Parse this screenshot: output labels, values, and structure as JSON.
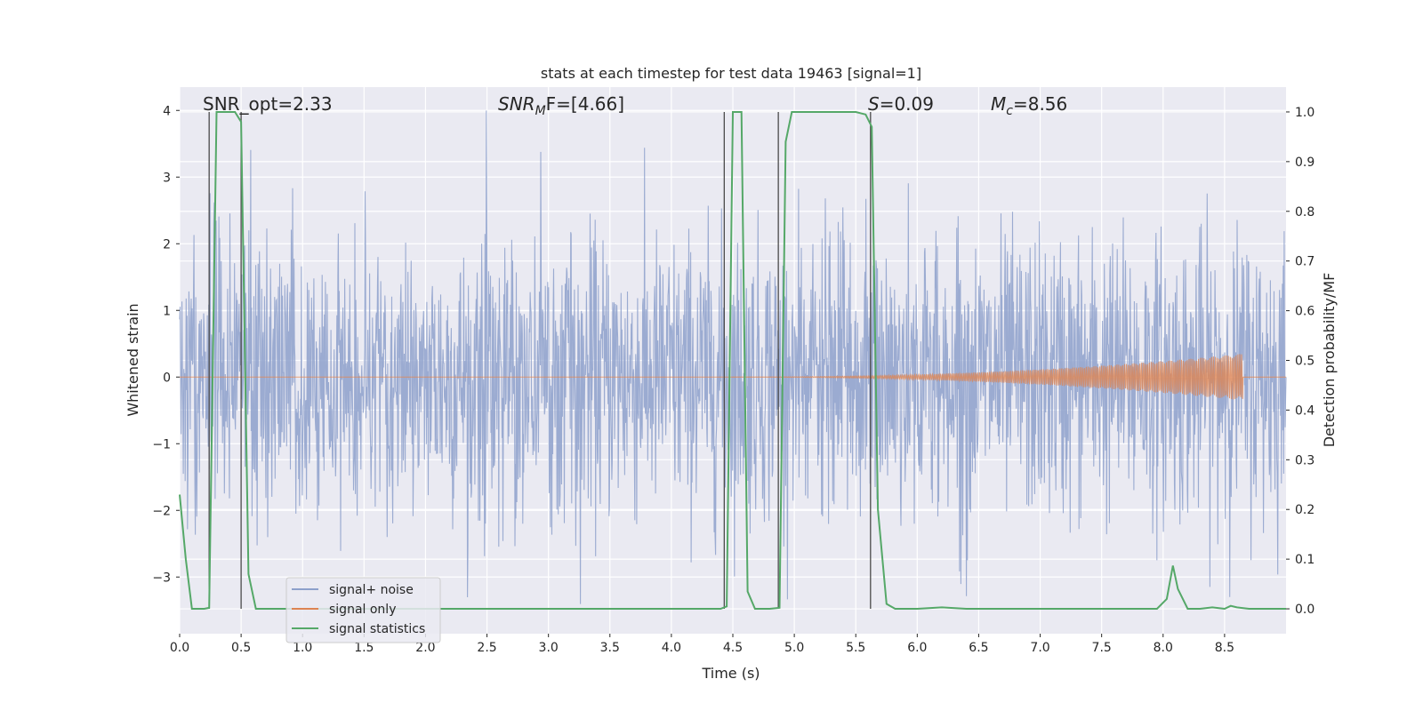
{
  "chart_data": {
    "type": "line",
    "title": "stats at each timestep for test data 19463 [signal=1]",
    "xlabel": "Time (s)",
    "ylabel_left": "Whitened strain",
    "ylabel_right": "Detection probability/MF",
    "xlim": [
      0.0,
      9.0
    ],
    "ylim_left": [
      -3.85,
      4.35
    ],
    "ylim_right": [
      -0.05,
      1.05
    ],
    "xticks": [
      "0.0",
      "0.5",
      "1.0",
      "1.5",
      "2.0",
      "2.5",
      "3.0",
      "3.5",
      "4.0",
      "4.5",
      "5.0",
      "5.5",
      "6.0",
      "6.5",
      "7.0",
      "7.5",
      "8.0",
      "8.5"
    ],
    "xtick_values": [
      0.0,
      0.5,
      1.0,
      1.5,
      2.0,
      2.5,
      3.0,
      3.5,
      4.0,
      4.5,
      5.0,
      5.5,
      6.0,
      6.5,
      7.0,
      7.5,
      8.0,
      8.5
    ],
    "yticks_left": [
      "4",
      "3",
      "2",
      "1",
      "0",
      "−1",
      "−2",
      "−3"
    ],
    "ytick_left_values": [
      4,
      3,
      2,
      1,
      0,
      -1,
      -2,
      -3
    ],
    "yticks_right": [
      "1.0",
      "0.9",
      "0.8",
      "0.7",
      "0.6",
      "0.5",
      "0.4",
      "0.3",
      "0.2",
      "0.1",
      "0.0"
    ],
    "ytick_right_values": [
      1.0,
      0.9,
      0.8,
      0.7,
      0.6,
      0.5,
      0.4,
      0.3,
      0.2,
      0.1,
      0.0
    ],
    "annotations": {
      "snr_opt": "SNR_opt=2.33",
      "snr_mf_main": "SNR",
      "snr_mf_sub": "M",
      "snr_mf_rest": "F=[4.66]",
      "s_main": "S",
      "s_rest": "=0.09",
      "mc_main": "M",
      "mc_sub": "c",
      "mc_rest": "=8.56"
    },
    "series": [
      {
        "name": "signal+ noise",
        "color": "#8da0cb",
        "style": "noise",
        "envelope_typical": [
          -1.5,
          1.7
        ],
        "envelope_max": [
          -3.5,
          4.0
        ]
      },
      {
        "name": "signal only",
        "color": "#dd8452",
        "style": "chirp",
        "start_time": 4.5,
        "end_time": 8.65,
        "end_amplitude": 0.35
      },
      {
        "name": "signal statistics",
        "color": "#55a868",
        "axis": "right",
        "x": [
          0.0,
          0.05,
          0.1,
          0.15,
          0.2,
          0.24,
          0.3,
          0.35,
          0.4,
          0.45,
          0.5,
          0.56,
          0.62,
          0.7,
          0.8,
          1.0,
          1.5,
          2.0,
          2.5,
          3.0,
          3.5,
          4.0,
          4.4,
          4.45,
          4.5,
          4.53,
          4.57,
          4.62,
          4.68,
          4.8,
          4.88,
          4.93,
          4.98,
          5.05,
          5.5,
          5.58,
          5.63,
          5.68,
          5.75,
          5.82,
          6.0,
          6.2,
          6.4,
          7.0,
          7.5,
          7.95,
          8.03,
          8.08,
          8.12,
          8.2,
          8.3,
          8.4,
          8.5,
          8.55,
          8.6,
          8.7,
          9.0
        ],
        "y": [
          0.23,
          0.1,
          0.0,
          0.0,
          0.0,
          0.002,
          1.0,
          1.0,
          1.0,
          1.0,
          0.98,
          0.07,
          0.0,
          0.0,
          0.0,
          0.0,
          0.0,
          0.0,
          0.0,
          0.0,
          0.0,
          0.0,
          0.0,
          0.005,
          1.0,
          1.0,
          1.0,
          0.035,
          0.0,
          0.0,
          0.002,
          0.94,
          1.0,
          1.0,
          1.0,
          0.995,
          0.97,
          0.2,
          0.01,
          0.0,
          0.0,
          0.003,
          0.0,
          0.0,
          0.0,
          0.0,
          0.02,
          0.087,
          0.04,
          0.0,
          0.0,
          0.003,
          0.0,
          0.006,
          0.003,
          0.0,
          0.0
        ]
      }
    ],
    "vertical_markers": [
      0.24,
      0.5,
      4.43,
      4.87,
      5.62
    ],
    "legend": {
      "position": "lower-left",
      "entries": [
        {
          "label": "signal+ noise",
          "color": "#8da0cb"
        },
        {
          "label": "signal only",
          "color": "#dd8452"
        },
        {
          "label": "signal statistics",
          "color": "#55a868"
        }
      ]
    },
    "colors": {
      "plot_background": "#eaeaf2",
      "grid": "#ffffff",
      "marker_line": "#4a4a4a"
    }
  }
}
